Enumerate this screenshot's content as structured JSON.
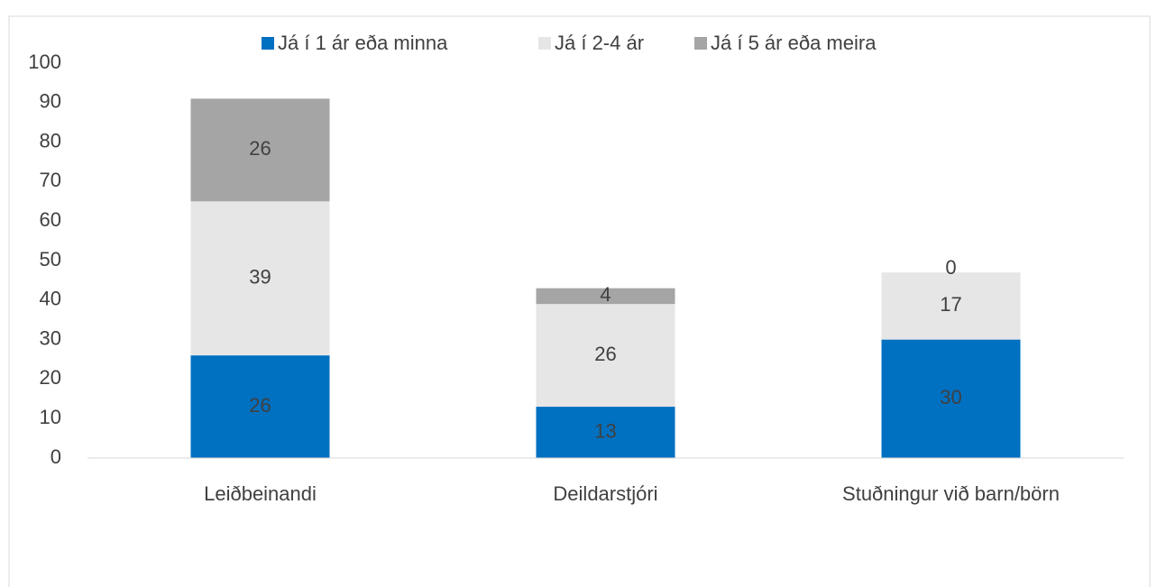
{
  "chart_data": {
    "type": "stacked_bar",
    "categories": [
      "Leiðbeinandi",
      "Deildarstjóri",
      "Stuðningur við barn/börn"
    ],
    "series": [
      {
        "name": "Já í 1 ár eða minna",
        "color": "#0070c0",
        "values": [
          26,
          13,
          30
        ]
      },
      {
        "name": "Já í 2-4 ár",
        "color": "#e7e6e6",
        "values": [
          39,
          26,
          17
        ]
      },
      {
        "name": "Já í 5 ár eða meira",
        "color": "#a5a5a5",
        "values": [
          26,
          4,
          0
        ]
      }
    ],
    "ylim": [
      0,
      100
    ],
    "yticks": [
      0,
      10,
      20,
      30,
      40,
      50,
      60,
      70,
      80,
      90,
      100
    ],
    "grid": false,
    "legend": "top"
  }
}
